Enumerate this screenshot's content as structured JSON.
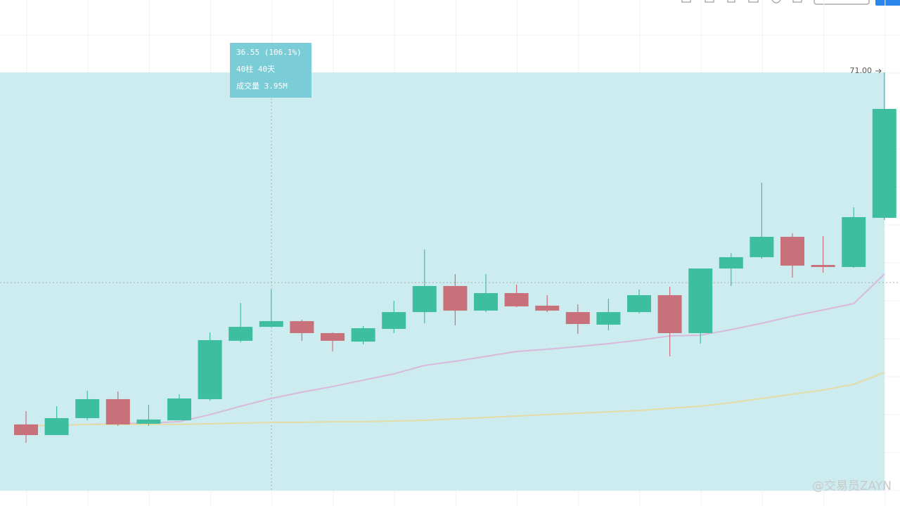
{
  "chart_data": {
    "type": "candlestick",
    "ylim": [
      33.1,
      77.33
    ],
    "up_color": "#3dbf9f",
    "down_color": "#c8717a",
    "candles": [
      {
        "open": 40.23,
        "high": 41.39,
        "low": 38.63,
        "close": 39.3
      },
      {
        "open": 39.3,
        "high": 41.82,
        "low": 39.3,
        "close": 40.78
      },
      {
        "open": 40.78,
        "high": 43.17,
        "low": 40.59,
        "close": 42.44
      },
      {
        "open": 42.44,
        "high": 43.11,
        "low": 40.1,
        "close": 40.23
      },
      {
        "open": 40.29,
        "high": 41.95,
        "low": 40.1,
        "close": 40.66
      },
      {
        "open": 40.59,
        "high": 42.87,
        "low": 40.59,
        "close": 42.5
      },
      {
        "open": 42.44,
        "high": 48.27,
        "low": 42.31,
        "close": 47.6
      },
      {
        "open": 47.54,
        "high": 50.85,
        "low": 47.41,
        "close": 48.76
      },
      {
        "open": 48.76,
        "high": 52.02,
        "low": 48.76,
        "close": 49.26
      },
      {
        "open": 49.26,
        "high": 49.38,
        "low": 47.54,
        "close": 48.21
      },
      {
        "open": 48.21,
        "high": 48.27,
        "low": 46.61,
        "close": 47.54
      },
      {
        "open": 47.47,
        "high": 48.83,
        "low": 47.23,
        "close": 48.64
      },
      {
        "open": 48.58,
        "high": 51.04,
        "low": 48.21,
        "close": 50.05
      },
      {
        "open": 50.05,
        "high": 55.52,
        "low": 49.07,
        "close": 52.33
      },
      {
        "open": 52.33,
        "high": 53.37,
        "low": 48.89,
        "close": 50.18
      },
      {
        "open": 50.18,
        "high": 53.37,
        "low": 50.05,
        "close": 51.71
      },
      {
        "open": 51.71,
        "high": 52.45,
        "low": 50.48,
        "close": 50.55
      },
      {
        "open": 50.61,
        "high": 51.53,
        "low": 50.05,
        "close": 50.18
      },
      {
        "open": 50.05,
        "high": 50.73,
        "low": 48.15,
        "close": 49.01
      },
      {
        "open": 48.95,
        "high": 51.22,
        "low": 48.46,
        "close": 50.05
      },
      {
        "open": 50.05,
        "high": 52.02,
        "low": 49.93,
        "close": 51.53
      },
      {
        "open": 51.53,
        "high": 52.27,
        "low": 46.18,
        "close": 48.21
      },
      {
        "open": 48.21,
        "high": 53.86,
        "low": 47.29,
        "close": 53.86
      },
      {
        "open": 53.86,
        "high": 55.21,
        "low": 52.33,
        "close": 54.85
      },
      {
        "open": 54.85,
        "high": 61.36,
        "low": 54.72,
        "close": 56.63
      },
      {
        "open": 56.63,
        "high": 56.93,
        "low": 53.06,
        "close": 54.11
      },
      {
        "open": 54.17,
        "high": 56.69,
        "low": 53.49,
        "close": 53.99
      },
      {
        "open": 53.99,
        "high": 59.21,
        "low": 53.92,
        "close": 58.35
      },
      {
        "open": 58.29,
        "high": 71.0,
        "low": 58.1,
        "close": 67.81
      }
    ],
    "series": [
      {
        "color": "#d9b8dc",
        "values": [
          40.1,
          40.16,
          40.23,
          40.29,
          40.35,
          40.47,
          41.09,
          41.82,
          42.5,
          43.05,
          43.54,
          44.1,
          44.65,
          45.39,
          45.75,
          46.18,
          46.61,
          46.8,
          47.04,
          47.29,
          47.6,
          47.97,
          48.03,
          48.52,
          49.07,
          49.69,
          50.24,
          50.79,
          53.37
        ]
      },
      {
        "color": "#e3dca6",
        "values": [
          40.1,
          40.16,
          40.23,
          40.23,
          40.23,
          40.23,
          40.29,
          40.35,
          40.41,
          40.41,
          40.47,
          40.47,
          40.53,
          40.59,
          40.72,
          40.84,
          40.96,
          41.09,
          41.21,
          41.33,
          41.45,
          41.64,
          41.82,
          42.13,
          42.5,
          42.87,
          43.24,
          43.73,
          44.77
        ]
      }
    ],
    "measure": {
      "top": {
        "value": 71.0,
        "label": "71.00"
      },
      "bottom": 34.45,
      "change": "36.55 (106.1%)",
      "bars": "40柱 40天",
      "volume": "成交量 3.95M"
    },
    "crosshair": 52.63,
    "watermark": "@交易员ZAYN"
  }
}
